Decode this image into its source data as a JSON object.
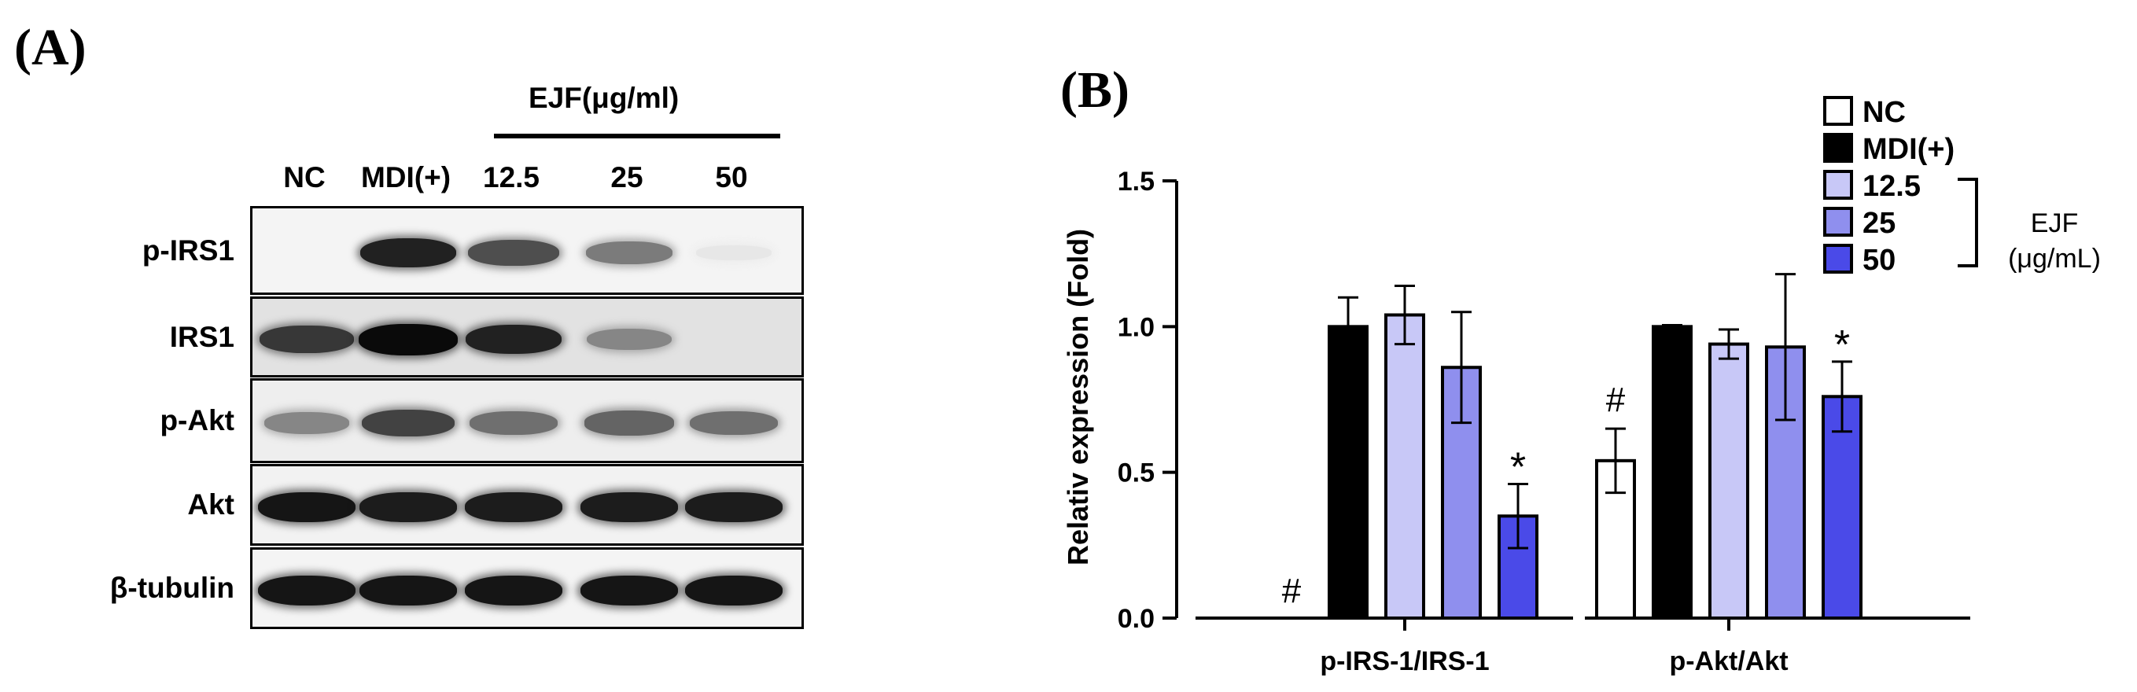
{
  "panels": {
    "a_label": "(A)",
    "b_label": "(B)"
  },
  "western_blot": {
    "ejf_header": "EJF(μg/ml)",
    "lanes": [
      "NC",
      "MDI(+)",
      "12.5",
      "25",
      "50"
    ],
    "rows": [
      {
        "label": "p-IRS1",
        "background": "#f4f4f4",
        "intensity": [
          0.0,
          0.9,
          0.7,
          0.5,
          0.02
        ]
      },
      {
        "label": "IRS1",
        "background": "#e2e2e2",
        "intensity": [
          0.8,
          1.0,
          0.9,
          0.45,
          0.0
        ]
      },
      {
        "label": "p-Akt",
        "background": "#eeeeee",
        "intensity": [
          0.45,
          0.75,
          0.55,
          0.6,
          0.55
        ]
      },
      {
        "label": "Akt",
        "background": "#f2f2f2",
        "intensity": [
          0.95,
          0.92,
          0.92,
          0.92,
          0.92
        ]
      },
      {
        "label": "β-tubulin",
        "background": "#f4f4f4",
        "intensity": [
          0.95,
          0.95,
          0.95,
          0.95,
          0.95
        ]
      }
    ]
  },
  "chart_data": {
    "type": "bar",
    "ylabel": "Relativ expression (Fold)",
    "ylim": [
      0,
      1.5
    ],
    "yticks": [
      "0.0",
      "0.5",
      "1.0",
      "1.5"
    ],
    "categories": [
      "p-IRS-1/IRS-1",
      "p-Akt/Akt"
    ],
    "series": [
      {
        "name": "NC",
        "color": "#ffffff",
        "values": [
          0.0,
          0.54
        ],
        "errors": [
          0.0,
          0.11
        ]
      },
      {
        "name": "MDI(+)",
        "color": "#000000",
        "values": [
          1.0,
          1.0
        ],
        "errors": [
          0.1,
          0.005
        ]
      },
      {
        "name": "12.5",
        "color": "#c8c8f7",
        "values": [
          1.04,
          0.94
        ],
        "errors": [
          0.1,
          0.05
        ]
      },
      {
        "name": "25",
        "color": "#8f8fee",
        "values": [
          0.86,
          0.93
        ],
        "errors": [
          0.19,
          0.25
        ]
      },
      {
        "name": "50",
        "color": "#4a4ae8",
        "values": [
          0.35,
          0.76
        ],
        "errors": [
          0.11,
          0.12
        ]
      }
    ],
    "annotations": [
      {
        "category": 0,
        "series": 0,
        "text": "#"
      },
      {
        "category": 0,
        "series": 4,
        "text": "*"
      },
      {
        "category": 1,
        "series": 0,
        "text": "#"
      },
      {
        "category": 1,
        "series": 4,
        "text": "*"
      }
    ],
    "legend": {
      "placement": "top-right",
      "bracket_label_line1": "EJF",
      "bracket_label_line2": "(μg/mL)"
    }
  }
}
